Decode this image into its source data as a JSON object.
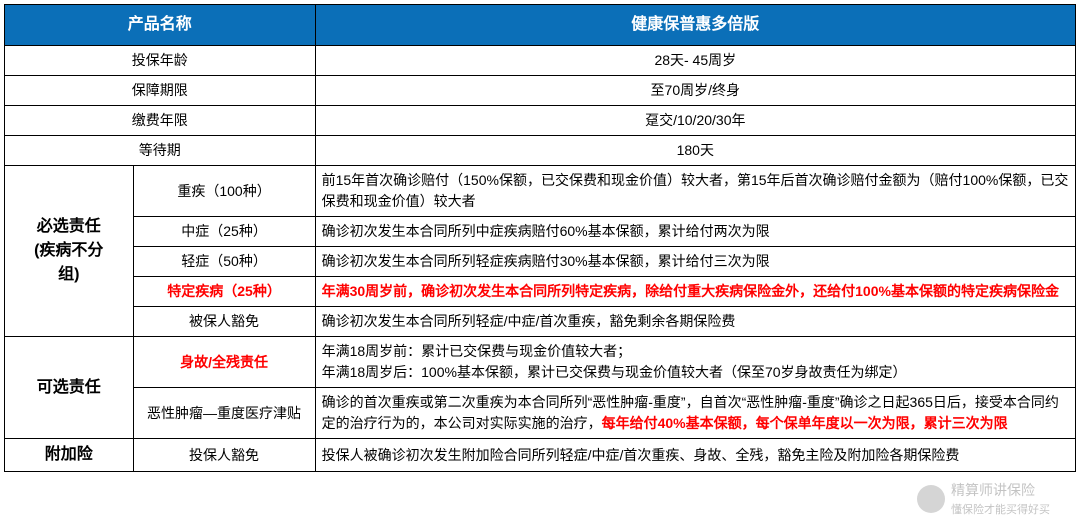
{
  "header": {
    "col1": "产品名称",
    "col2": "健康保普惠多倍版"
  },
  "basics": [
    {
      "label": "投保年龄",
      "value": "28天- 45周岁"
    },
    {
      "label": "保障期限",
      "value": "至70周岁/终身"
    },
    {
      "label": "缴费年限",
      "value": "趸交/10/20/30年"
    },
    {
      "label": "等待期",
      "value": "180天"
    }
  ],
  "group1": {
    "title_line1": "必选责任",
    "title_line2": "(疾病不分",
    "title_line3": "组)",
    "rows": [
      {
        "label": "重疾（100种）",
        "desc": "前15年首次确诊赔付（150%保额，已交保费和现金价值）较大者，第15年后首次确诊赔付金额为（赔付100%保额，已交保费和现金价值）较大者"
      },
      {
        "label": "中症（25种）",
        "desc": "确诊初次发生本合同所列中症疾病赔付60%基本保额，累计给付两次为限"
      },
      {
        "label": "轻症（50种）",
        "desc": "确诊初次发生本合同所列轻症疾病赔付30%基本保额，累计给付三次为限"
      },
      {
        "label": "特定疾病（25种）",
        "label_red": true,
        "desc": "年满30周岁前，确诊初次发生本合同所列特定疾病，除给付重大疾病保险金外，还给付100%基本保额的特定疾病保险金",
        "desc_red": true
      },
      {
        "label": "被保人豁免",
        "desc": "确诊初次发生本合同所列轻症/中症/首次重疾，豁免剩余各期保险费"
      }
    ]
  },
  "group2": {
    "title": "可选责任",
    "rows": [
      {
        "label": "身故/全残责任",
        "label_red": true,
        "desc": "年满18周岁前：累计已交保费与现金价值较大者；\n年满18周岁后：100%基本保额，累计已交保费与现金价值较大者（保至70岁身故责任为绑定）"
      },
      {
        "label": "恶性肿瘤—重度医疗津贴",
        "desc_prefix": "确诊的首次重疾或第二次重疾为本合同所列“恶性肿瘤-重度”，自首次“恶性肿瘤-重度”确诊之日起365日后，接受本合同约定的治疗行为的，本公司对实际实施的治疗，",
        "desc_suffix_red": "每年给付40%基本保额，每个保单年度以一次为限，累计三次为限"
      }
    ]
  },
  "group3": {
    "title": "附加险",
    "row": {
      "label": "投保人豁免",
      "desc": "投保人被确诊初次发生附加险合同所列轻症/中症/首次重疾、身故、全残，豁免主险及附加险各期保险费"
    }
  },
  "watermark": {
    "text1": "精算师讲保险",
    "text2": "懂保险才能买得好买"
  },
  "colors": {
    "header_bg": "#0b6fb8",
    "header_text": "#ffffff",
    "border": "#000000",
    "red_text": "#ff0000",
    "body_text": "#000000",
    "bg": "#ffffff"
  },
  "layout": {
    "col_widths_pct": [
      12,
      17,
      71
    ]
  }
}
